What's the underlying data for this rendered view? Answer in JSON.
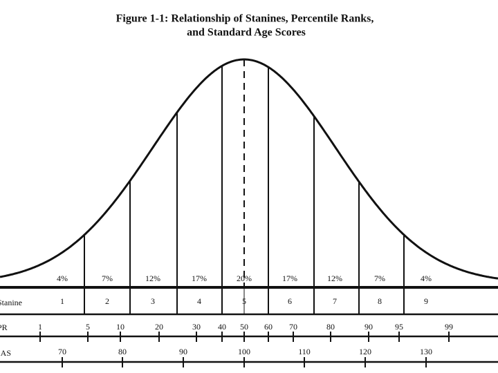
{
  "title": [
    "Figure 1-1: Relationship of Stanines, Percentile Ranks,",
    "and Standard Age Scores"
  ],
  "percentages": [
    "4%",
    "7%",
    "12%",
    "17%",
    "20%",
    "17%",
    "12%",
    "7%",
    "4%"
  ],
  "stanine": {
    "label": "Stanine",
    "values": [
      1,
      2,
      3,
      4,
      5,
      6,
      7,
      8,
      9
    ]
  },
  "pr": {
    "label": "PR",
    "ticks": [
      1,
      5,
      10,
      20,
      30,
      40,
      50,
      60,
      70,
      80,
      90,
      95,
      99
    ]
  },
  "sas": {
    "label": "SAS",
    "ticks": [
      70,
      80,
      90,
      100,
      110,
      120,
      130
    ]
  }
}
